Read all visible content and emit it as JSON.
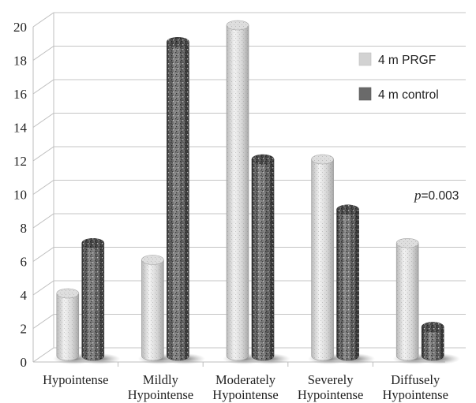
{
  "chart_data": {
    "type": "bar",
    "categories": [
      [
        "Hypointense"
      ],
      [
        "Mildly",
        "Hypointense"
      ],
      [
        "Moderately",
        "Hypointense"
      ],
      [
        "Severely",
        "Hypointense"
      ],
      [
        "Diffusely",
        "Hypointense"
      ]
    ],
    "series": [
      {
        "name": "4 m PRGF",
        "values": [
          4,
          6,
          20,
          12,
          7
        ],
        "color": "#d2d2d2"
      },
      {
        "name": "4 m control",
        "values": [
          7,
          19,
          12,
          9,
          2
        ],
        "color": "#6a6a6a"
      }
    ],
    "ylim": [
      0,
      20
    ],
    "yticks": [
      0,
      2,
      4,
      6,
      8,
      10,
      12,
      14,
      16,
      18,
      20
    ],
    "grid": true,
    "legend_position": "top-right",
    "annotation": {
      "italic": "p",
      "text": "=0.003"
    }
  }
}
